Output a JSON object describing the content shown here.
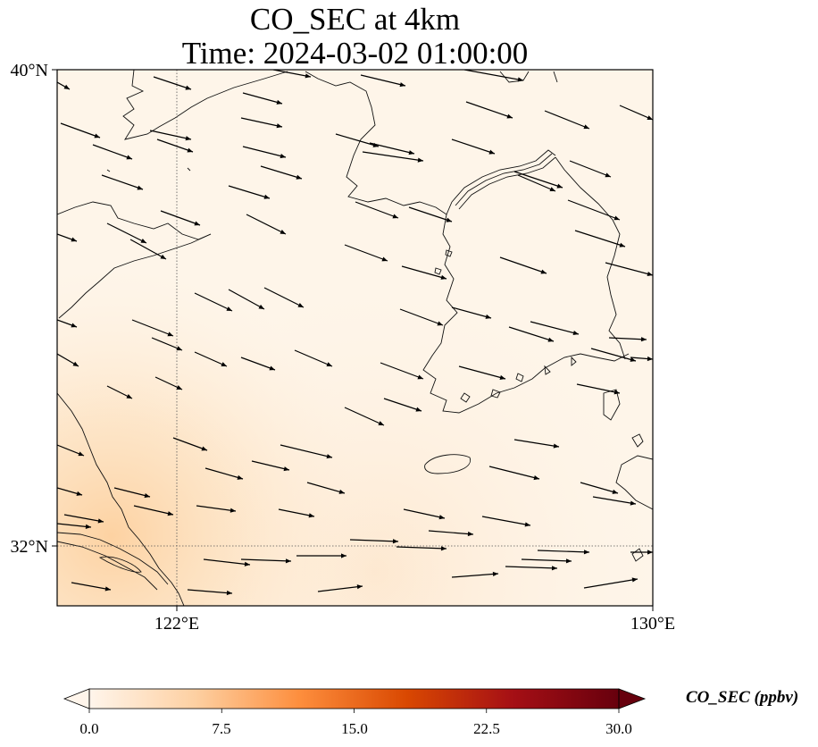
{
  "title": {
    "line1": "CO_SEC at 4km",
    "line2": "Time: 2024-03-02 01:00:00"
  },
  "map": {
    "lon_range": [
      120,
      130
    ],
    "lat_range": [
      31,
      40
    ],
    "ticks": {
      "lat": [
        {
          "value": 40,
          "label": "40°N"
        },
        {
          "value": 32,
          "label": "32°N"
        }
      ],
      "lon": [
        {
          "value": 122,
          "label": "122°E"
        },
        {
          "value": 130,
          "label": "130°E"
        }
      ]
    },
    "gridlines": {
      "lon": [
        122
      ],
      "lat": [
        32
      ],
      "style": "dotted"
    },
    "wind_vector_direction": "east-southeast",
    "field_pattern": "higher values in southwest near 31-33N, 120-123E"
  },
  "colorbar": {
    "title": "CO_SEC (ppbv)",
    "min": 0,
    "max": 30,
    "ticks": [
      {
        "value": 0,
        "label": "0.0"
      },
      {
        "value": 7.5,
        "label": "7.5"
      },
      {
        "value": 15,
        "label": "15.0"
      },
      {
        "value": 22.5,
        "label": "22.5"
      },
      {
        "value": 30,
        "label": "30.0"
      }
    ],
    "colors": [
      "#fff5eb",
      "#fdd0a2",
      "#fd8d3c",
      "#d94801",
      "#a50f15",
      "#67000d"
    ],
    "extend": "both"
  }
}
